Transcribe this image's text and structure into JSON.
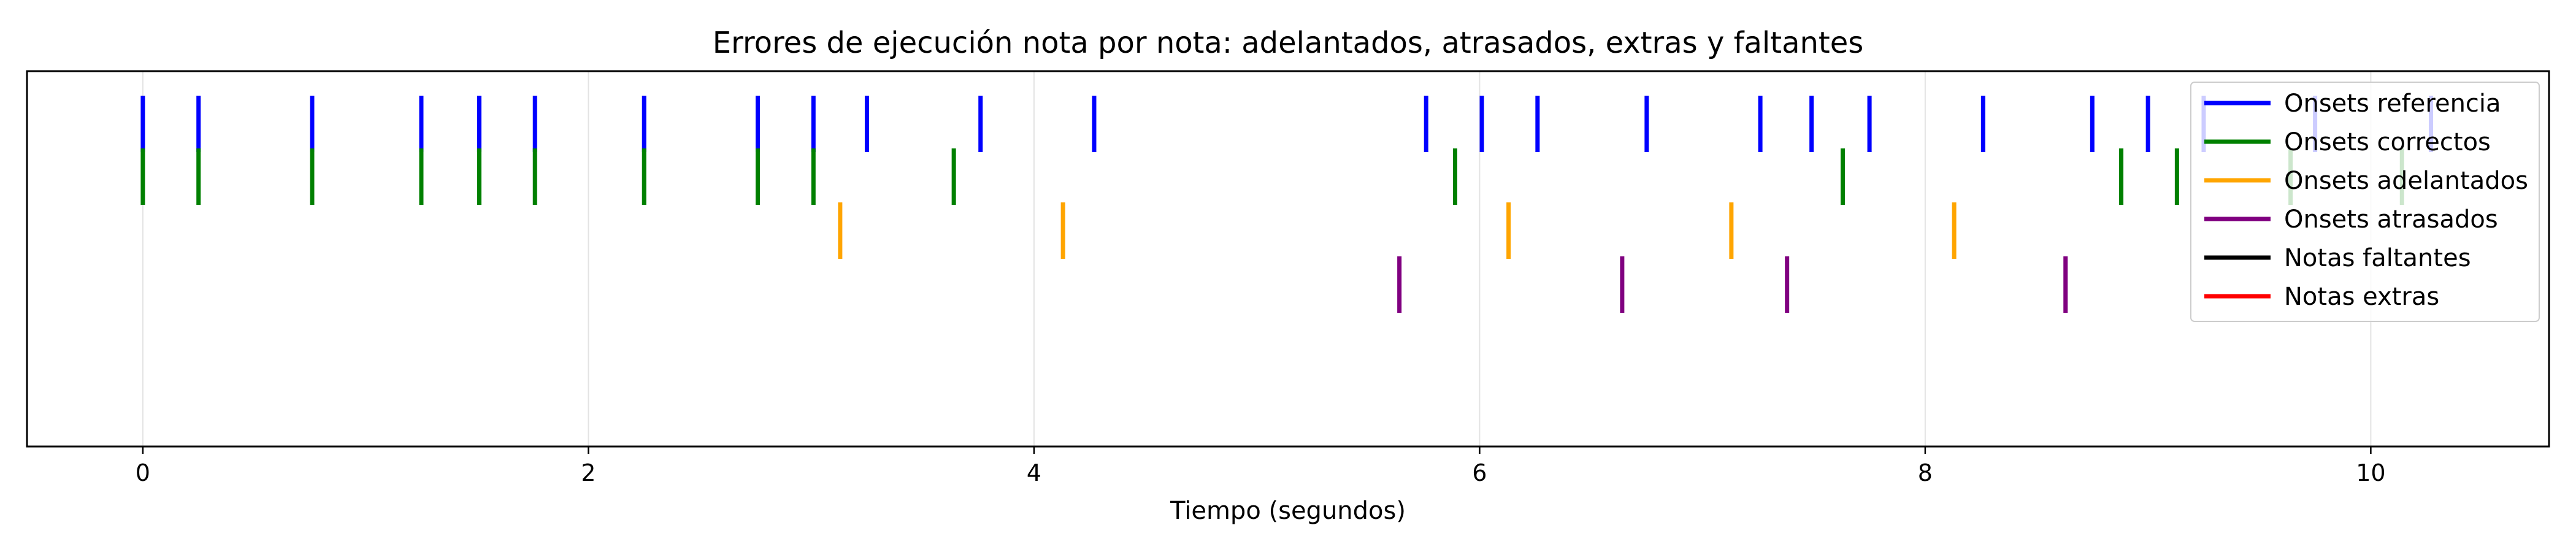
{
  "chart_data": {
    "type": "scatter",
    "title": "Errores de ejecución nota por nota: adelantados, atrasados, extras y faltantes",
    "xlabel": "Tiempo (segundos)",
    "ylabel": "",
    "xlim": [
      -0.52,
      10.8
    ],
    "xticks": [
      0,
      2,
      4,
      6,
      8,
      10
    ],
    "grid": "x",
    "legend_position": "top-right",
    "series": [
      {
        "name": "Onsets referencia",
        "color": "#0000ff",
        "row": 0,
        "x": [
          0,
          0.25,
          0.76,
          1.25,
          1.51,
          1.76,
          2.25,
          2.76,
          3.01,
          3.25,
          3.76,
          4.27,
          5.76,
          6.01,
          6.26,
          6.75,
          7.26,
          7.49,
          7.75,
          8.26,
          8.75,
          9.0,
          9.25,
          9.75,
          10.27
        ]
      },
      {
        "name": "Onsets correctos",
        "color": "#008000",
        "row": 1,
        "x": [
          0,
          0.25,
          0.76,
          1.25,
          1.51,
          1.76,
          2.25,
          2.76,
          3.01,
          3.64,
          5.89,
          7.63,
          8.88,
          9.13,
          9.64,
          10.14
        ]
      },
      {
        "name": "Onsets adelantados",
        "color": "#ffa500",
        "row": 2,
        "x": [
          3.13,
          4.13,
          6.13,
          7.13,
          8.13
        ]
      },
      {
        "name": "Onsets atrasados",
        "color": "#800080",
        "row": 3,
        "x": [
          5.64,
          6.64,
          7.38,
          8.63
        ]
      },
      {
        "name": "Notas faltantes",
        "color": "#000000",
        "row": 4,
        "x": []
      },
      {
        "name": "Notas extras",
        "color": "#ff0000",
        "row": 5,
        "x": []
      }
    ]
  }
}
